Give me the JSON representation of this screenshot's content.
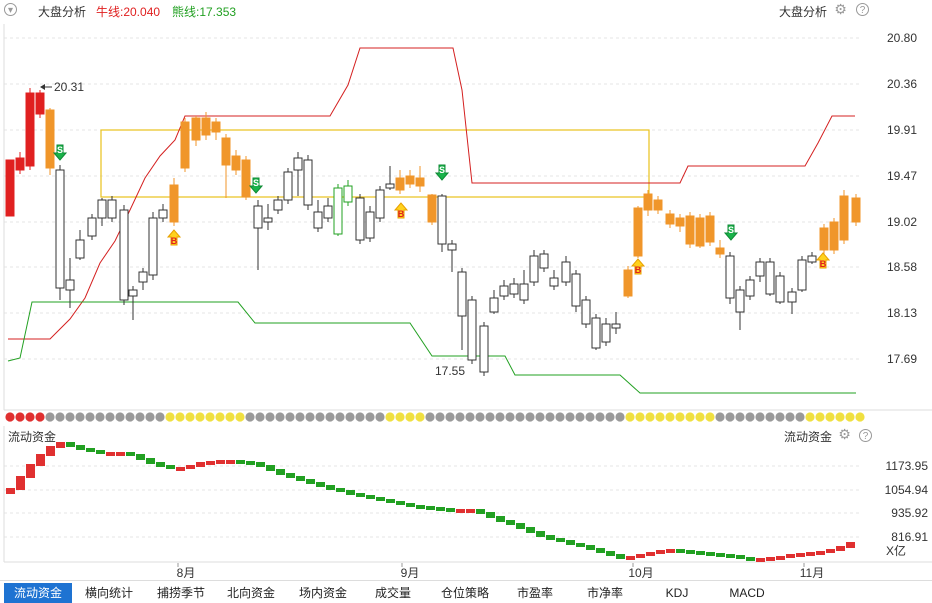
{
  "header": {
    "title": "大盘分析",
    "bull_label": "牛线:20.040",
    "bear_label": "熊线:17.353",
    "right_title": "大盘分析",
    "bull_color": "#e02020",
    "bear_color": "#22a022"
  },
  "main_chart": {
    "y_ticks": [
      "20.80",
      "20.36",
      "19.91",
      "19.47",
      "19.02",
      "18.58",
      "18.13",
      "17.69"
    ],
    "high_label": "20.31",
    "low_label": "17.55",
    "up_color": "#e02020",
    "down_color": "#333333",
    "orange_color": "#f0962a",
    "green_color": "#22a022",
    "buy_marker": "B",
    "sell_marker": "S"
  },
  "fund_panel": {
    "title": "流动资金",
    "right_title": "流动资金",
    "y_ticks": [
      "1173.95",
      "1054.94",
      "935.92",
      "816.91"
    ],
    "unit": "X亿"
  },
  "x_axis": {
    "labels": [
      "8月",
      "9月",
      "10月",
      "11月"
    ]
  },
  "tabs": [
    {
      "label": "流动资金",
      "active": true
    },
    {
      "label": "横向统计",
      "active": false
    },
    {
      "label": "捕捞季节",
      "active": false
    },
    {
      "label": "北向资金",
      "active": false
    },
    {
      "label": "场内资金",
      "active": false
    },
    {
      "label": "成交量",
      "active": false
    },
    {
      "label": "仓位策略",
      "active": false
    },
    {
      "label": "市盈率",
      "active": false
    },
    {
      "label": "市净率",
      "active": false
    },
    {
      "label": "KDJ",
      "active": false
    },
    {
      "label": "MACD",
      "active": false
    }
  ],
  "icons": {
    "dropdown": "chevron-down-icon",
    "settings": "gear-icon",
    "help": "help-icon"
  }
}
